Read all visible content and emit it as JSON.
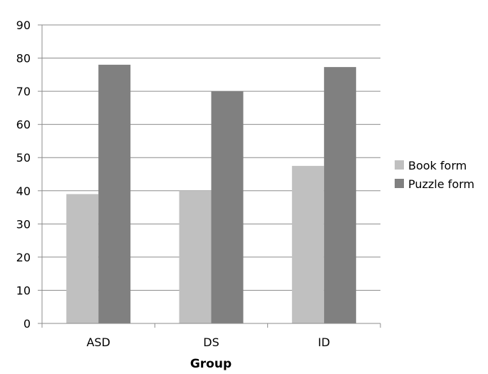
{
  "chart_data": {
    "type": "bar",
    "title": "",
    "xlabel": "Group",
    "ylabel": "",
    "categories": [
      "ASD",
      "DS",
      "ID"
    ],
    "series": [
      {
        "name": "Book form",
        "values": [
          39,
          40,
          47.5
        ],
        "color": "#c0c0c0"
      },
      {
        "name": "Puzzle form",
        "values": [
          78,
          70,
          77.3
        ],
        "color": "#808080"
      }
    ],
    "ylim": [
      0,
      90
    ],
    "yticks": [
      0,
      10,
      20,
      30,
      40,
      50,
      60,
      70,
      80,
      90
    ],
    "grid": true,
    "legend_position": "right"
  }
}
